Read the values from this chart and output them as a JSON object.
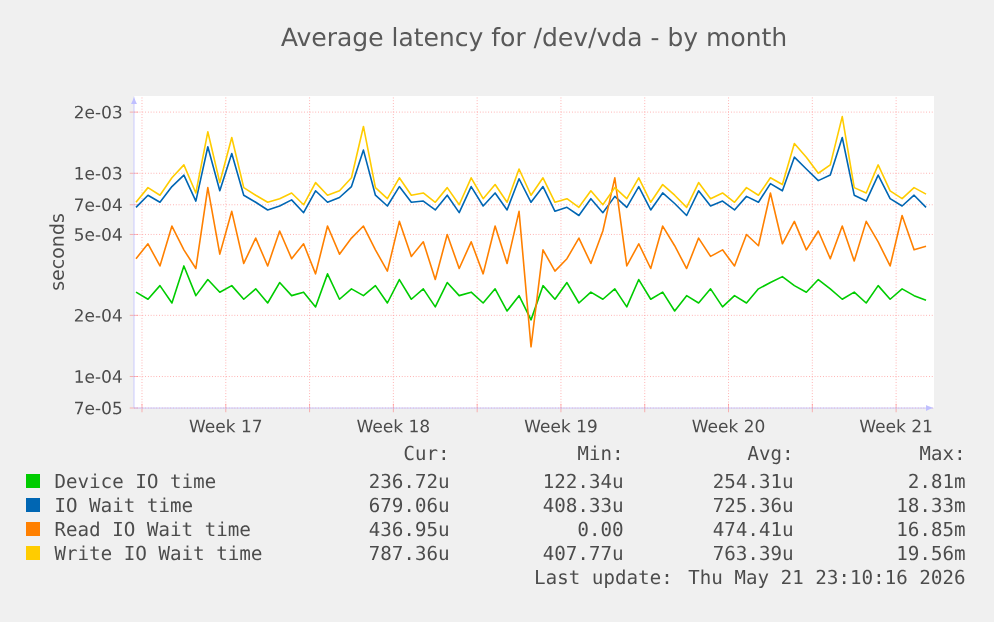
{
  "chart_data": {
    "type": "line",
    "title": "Average latency for /dev/vda - by month",
    "ylabel": "seconds",
    "log": true,
    "grid": true,
    "legend": "bottom",
    "xlim": [
      "2026-04-19T16:00",
      "2026-05-23T02:00"
    ],
    "xticks": [
      {
        "value": "2026-04-20T00:00",
        "label": null
      },
      {
        "value": "2026-04-23T12:00",
        "label": "Week 17"
      },
      {
        "value": "2026-04-27T00:00",
        "label": null
      },
      {
        "value": "2026-04-30T12:00",
        "label": "Week 18"
      },
      {
        "value": "2026-05-04T00:00",
        "label": null
      },
      {
        "value": "2026-05-07T12:00",
        "label": "Week 19"
      },
      {
        "value": "2026-05-11T00:00",
        "label": null
      },
      {
        "value": "2026-05-14T12:00",
        "label": "Week 20"
      },
      {
        "value": "2026-05-18T00:00",
        "label": null
      },
      {
        "value": "2026-05-21T12:00",
        "label": "Week 21"
      }
    ],
    "ylim": [
      7e-05,
      0.0024
    ],
    "yticks": [
      {
        "value": 7e-05,
        "label": "7e-05"
      },
      {
        "value": 0.0001,
        "label": "1e-04"
      },
      {
        "value": 0.0002,
        "label": "2e-04"
      },
      {
        "value": 0.0005,
        "label": "5e-04"
      },
      {
        "value": 0.0007,
        "label": "7e-04"
      },
      {
        "value": 0.001,
        "label": "1e-03"
      },
      {
        "value": 0.002,
        "label": "2e-03"
      }
    ],
    "x": [
      "2026-04-19T18:00",
      "2026-04-20T06:00",
      "2026-04-20T18:00",
      "2026-04-21T06:00",
      "2026-04-21T18:00",
      "2026-04-22T06:00",
      "2026-04-22T18:00",
      "2026-04-23T06:00",
      "2026-04-23T18:00",
      "2026-04-24T06:00",
      "2026-04-24T18:00",
      "2026-04-25T06:00",
      "2026-04-25T18:00",
      "2026-04-26T06:00",
      "2026-04-26T18:00",
      "2026-04-27T06:00",
      "2026-04-27T18:00",
      "2026-04-28T06:00",
      "2026-04-28T18:00",
      "2026-04-29T06:00",
      "2026-04-29T18:00",
      "2026-04-30T06:00",
      "2026-04-30T18:00",
      "2026-05-01T06:00",
      "2026-05-01T18:00",
      "2026-05-02T06:00",
      "2026-05-02T18:00",
      "2026-05-03T06:00",
      "2026-05-03T18:00",
      "2026-05-04T06:00",
      "2026-05-04T18:00",
      "2026-05-05T06:00",
      "2026-05-05T18:00",
      "2026-05-06T06:00",
      "2026-05-06T18:00",
      "2026-05-07T06:00",
      "2026-05-07T18:00",
      "2026-05-08T06:00",
      "2026-05-08T18:00",
      "2026-05-09T06:00",
      "2026-05-09T18:00",
      "2026-05-10T06:00",
      "2026-05-10T18:00",
      "2026-05-11T06:00",
      "2026-05-11T18:00",
      "2026-05-12T06:00",
      "2026-05-12T18:00",
      "2026-05-13T06:00",
      "2026-05-13T18:00",
      "2026-05-14T06:00",
      "2026-05-14T18:00",
      "2026-05-15T06:00",
      "2026-05-15T18:00",
      "2026-05-16T06:00",
      "2026-05-16T18:00",
      "2026-05-17T06:00",
      "2026-05-17T18:00",
      "2026-05-18T06:00",
      "2026-05-18T18:00",
      "2026-05-19T06:00",
      "2026-05-19T18:00",
      "2026-05-20T06:00",
      "2026-05-20T18:00",
      "2026-05-21T06:00",
      "2026-05-21T18:00",
      "2026-05-22T06:00",
      "2026-05-22T18:00"
    ],
    "series": [
      {
        "name": "Device IO time",
        "color": "#00cc00",
        "values": [
          0.00026,
          0.00024,
          0.00028,
          0.00023,
          0.00035,
          0.00025,
          0.0003,
          0.00026,
          0.00028,
          0.00024,
          0.00027,
          0.00023,
          0.00029,
          0.00025,
          0.00026,
          0.00022,
          0.00032,
          0.00024,
          0.00027,
          0.00025,
          0.00028,
          0.00023,
          0.0003,
          0.00024,
          0.00027,
          0.00022,
          0.00029,
          0.00025,
          0.00026,
          0.00023,
          0.00027,
          0.00021,
          0.00025,
          0.00019,
          0.00028,
          0.00024,
          0.00029,
          0.00023,
          0.00026,
          0.00024,
          0.00027,
          0.00022,
          0.0003,
          0.00024,
          0.00026,
          0.00021,
          0.00025,
          0.00023,
          0.00027,
          0.00022,
          0.00025,
          0.00023,
          0.00027,
          0.00029,
          0.00031,
          0.00028,
          0.00026,
          0.0003,
          0.00027,
          0.00024,
          0.00026,
          0.00023,
          0.00028,
          0.00024,
          0.00027,
          0.00025,
          0.000237
        ]
      },
      {
        "name": "IO Wait time",
        "color": "#0066b3",
        "values": [
          0.00068,
          0.00078,
          0.00072,
          0.00086,
          0.00098,
          0.00073,
          0.00135,
          0.00082,
          0.00125,
          0.00078,
          0.00072,
          0.00066,
          0.00069,
          0.00074,
          0.00064,
          0.00082,
          0.00072,
          0.00076,
          0.00086,
          0.0013,
          0.00078,
          0.00069,
          0.00086,
          0.00072,
          0.00073,
          0.00066,
          0.00078,
          0.00064,
          0.00086,
          0.00069,
          0.0008,
          0.00066,
          0.00094,
          0.00072,
          0.00086,
          0.00065,
          0.00068,
          0.00062,
          0.00075,
          0.00064,
          0.00077,
          0.00068,
          0.00086,
          0.00066,
          0.0008,
          0.00071,
          0.00062,
          0.00082,
          0.00069,
          0.00073,
          0.00066,
          0.00077,
          0.00072,
          0.00089,
          0.00082,
          0.0012,
          0.00105,
          0.00092,
          0.00098,
          0.0015,
          0.00078,
          0.00073,
          0.00098,
          0.00075,
          0.00069,
          0.00078,
          0.00068
        ]
      },
      {
        "name": "Read IO Wait time",
        "color": "#ff8000",
        "values": [
          0.00038,
          0.00045,
          0.00035,
          0.00055,
          0.00042,
          0.00034,
          0.00085,
          0.0004,
          0.00065,
          0.00036,
          0.00048,
          0.00035,
          0.00052,
          0.00038,
          0.00045,
          0.00032,
          0.00055,
          0.0004,
          0.00048,
          0.00055,
          0.00042,
          0.00033,
          0.00058,
          0.00039,
          0.00046,
          0.0003,
          0.0005,
          0.00034,
          0.00046,
          0.00032,
          0.00055,
          0.00036,
          0.00065,
          0.00014,
          0.00042,
          0.00033,
          0.00038,
          0.00048,
          0.00036,
          0.00052,
          0.00095,
          0.00035,
          0.00045,
          0.00034,
          0.00055,
          0.00044,
          0.00034,
          0.00048,
          0.00039,
          0.00042,
          0.00035,
          0.0005,
          0.00044,
          0.0008,
          0.00045,
          0.00058,
          0.00042,
          0.00052,
          0.00038,
          0.00055,
          0.00037,
          0.00058,
          0.00046,
          0.00035,
          0.00062,
          0.00042,
          0.000437
        ]
      },
      {
        "name": "Write IO Wait time",
        "color": "#ffcc00",
        "values": [
          0.00072,
          0.00085,
          0.00078,
          0.00095,
          0.0011,
          0.0008,
          0.0016,
          0.0009,
          0.0015,
          0.00085,
          0.00078,
          0.00072,
          0.00075,
          0.0008,
          0.0007,
          0.0009,
          0.00078,
          0.00082,
          0.00095,
          0.0017,
          0.00085,
          0.00075,
          0.00095,
          0.00078,
          0.0008,
          0.00072,
          0.00085,
          0.0007,
          0.00095,
          0.00075,
          0.00088,
          0.00072,
          0.00105,
          0.00078,
          0.00095,
          0.00072,
          0.00075,
          0.00068,
          0.00082,
          0.0007,
          0.00085,
          0.00075,
          0.00095,
          0.00072,
          0.00088,
          0.00078,
          0.00068,
          0.0009,
          0.00075,
          0.0008,
          0.00072,
          0.00085,
          0.00078,
          0.00095,
          0.00088,
          0.0014,
          0.0012,
          0.001,
          0.0011,
          0.0019,
          0.00085,
          0.0008,
          0.0011,
          0.00082,
          0.00075,
          0.00085,
          0.00079
        ]
      }
    ],
    "annotations": [
      "Cur:",
      "Min:",
      "Avg:",
      "Max:",
      "236.72u",
      "122.34u",
      "254.31u",
      "2.81m",
      "679.06u",
      "408.33u",
      "725.36u",
      "18.33m",
      "436.95u",
      "0.00",
      "474.41u",
      "16.85m",
      "787.36u",
      "407.77u",
      "763.39u",
      "19.56m",
      "Last update: Thu May 21 23:10:16 2026"
    ]
  }
}
